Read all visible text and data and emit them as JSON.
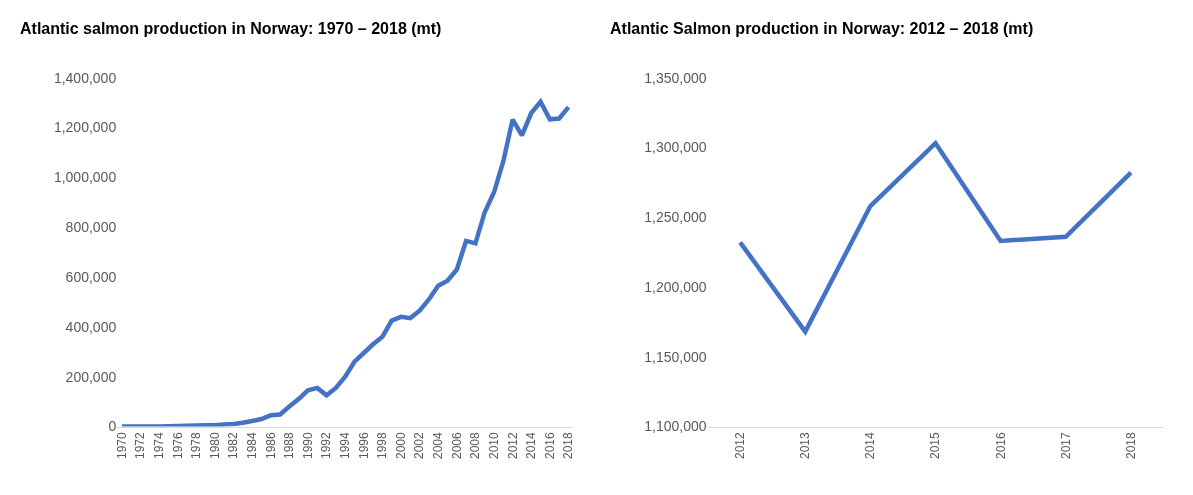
{
  "chart_data": [
    {
      "type": "line",
      "title": "Atlantic salmon production in Norway: 1970 – 2018 (mt)",
      "x": [
        1970,
        1971,
        1972,
        1973,
        1974,
        1975,
        1976,
        1977,
        1978,
        1979,
        1980,
        1981,
        1982,
        1983,
        1984,
        1985,
        1986,
        1987,
        1988,
        1989,
        1990,
        1991,
        1992,
        1993,
        1994,
        1995,
        1996,
        1997,
        1998,
        1999,
        2000,
        2001,
        2002,
        2003,
        2004,
        2005,
        2006,
        2007,
        2008,
        2009,
        2010,
        2011,
        2012,
        2013,
        2014,
        2015,
        2016,
        2017,
        2018
      ],
      "series": [
        {
          "color": "#4472c4",
          "values": [
            0,
            0,
            0,
            0,
            0,
            1000,
            2000,
            3000,
            4000,
            5000,
            5000,
            8000,
            10000,
            15000,
            22000,
            30000,
            45000,
            48000,
            80000,
            110000,
            145000,
            155000,
            125000,
            155000,
            200000,
            260000,
            295000,
            330000,
            360000,
            425000,
            440000,
            435000,
            465000,
            510000,
            565000,
            585000,
            630000,
            745000,
            735000,
            860000,
            940000,
            1065000,
            1232000,
            1168000,
            1258000,
            1303000,
            1233000,
            1236000,
            1282000
          ]
        }
      ],
      "xlim": [
        1969.5,
        2018.5
      ],
      "xticks": [
        1970,
        1972,
        1974,
        1976,
        1978,
        1980,
        1982,
        1984,
        1986,
        1988,
        1990,
        1992,
        1994,
        1996,
        1998,
        2000,
        2002,
        2004,
        2006,
        2008,
        2010,
        2012,
        2014,
        2016,
        2018
      ],
      "ylim": [
        0,
        1400000
      ],
      "yticks": [
        {
          "value": 0,
          "label": "0"
        },
        {
          "value": 200000,
          "label": "200,000"
        },
        {
          "value": 400000,
          "label": "400,000"
        },
        {
          "value": 600000,
          "label": "600,000"
        },
        {
          "value": 800000,
          "label": "800,000"
        },
        {
          "value": 1000000,
          "label": "1,000,000"
        },
        {
          "value": 1200000,
          "label": "1,200,000"
        },
        {
          "value": 1400000,
          "label": "1,400,000"
        }
      ],
      "grid": false,
      "marker": "none",
      "line_style": "solid"
    },
    {
      "type": "line",
      "title": "Atlantic Salmon production in Norway: 2012 – 2018 (mt)",
      "categories": [
        "2012",
        "2013",
        "2014",
        "2015",
        "2016",
        "2017",
        "2018"
      ],
      "series": [
        {
          "color": "#4472c4",
          "values": [
            1232000,
            1168000,
            1258000,
            1303000,
            1233000,
            1236000,
            1282000
          ]
        }
      ],
      "ylim": [
        1100000,
        1350000
      ],
      "yticks": [
        {
          "value": 1100000,
          "label": "1,100,000"
        },
        {
          "value": 1150000,
          "label": "1,150,000"
        },
        {
          "value": 1200000,
          "label": "1,200,000"
        },
        {
          "value": 1250000,
          "label": "1,250,000"
        },
        {
          "value": 1300000,
          "label": "1,300,000"
        },
        {
          "value": 1350000,
          "label": "1,350,000"
        }
      ],
      "grid": false,
      "marker": "none",
      "line_style": "solid"
    }
  ]
}
